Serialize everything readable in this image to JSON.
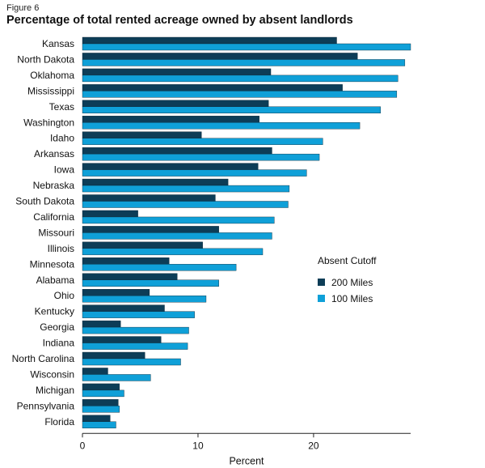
{
  "figure_label": "Figure 6",
  "title": "Percentage of total rented acreage owned by absent landlords",
  "chart_data": {
    "type": "bar",
    "orientation": "horizontal",
    "title": "Percentage of total rented acreage owned by absent landlords",
    "xlabel": "Percent",
    "ylabel": "",
    "xlim": [
      0,
      28.4
    ],
    "xticks": [
      0,
      10,
      20
    ],
    "legend": {
      "title": "Absent Cutoff",
      "placement": "right"
    },
    "categories": [
      "Kansas",
      "North Dakota",
      "Oklahoma",
      "Mississippi",
      "Texas",
      "Washington",
      "Idaho",
      "Arkansas",
      "Iowa",
      "Nebraska",
      "South Dakota",
      "California",
      "Missouri",
      "Illinois",
      "Minnesota",
      "Alabama",
      "Ohio",
      "Kentucky",
      "Georgia",
      "Indiana",
      "North Carolina",
      "Wisconsin",
      "Michigan",
      "Pennsylvania",
      "Florida"
    ],
    "series": [
      {
        "name": "200 Miles",
        "color": "#0d3d57",
        "values": [
          22.0,
          23.8,
          16.3,
          22.5,
          16.1,
          15.3,
          10.3,
          16.4,
          15.2,
          12.6,
          11.5,
          4.8,
          11.8,
          10.4,
          7.5,
          8.2,
          5.8,
          7.1,
          3.3,
          6.8,
          5.4,
          2.2,
          3.2,
          3.1,
          2.4
        ]
      },
      {
        "name": "100 Miles",
        "color": "#0fa0d8",
        "values": [
          28.4,
          27.9,
          27.3,
          27.2,
          25.8,
          24.0,
          20.8,
          20.5,
          19.4,
          17.9,
          17.8,
          16.6,
          16.4,
          15.6,
          13.3,
          11.8,
          10.7,
          9.7,
          9.2,
          9.1,
          8.5,
          5.9,
          3.6,
          3.2,
          2.9
        ]
      }
    ]
  }
}
